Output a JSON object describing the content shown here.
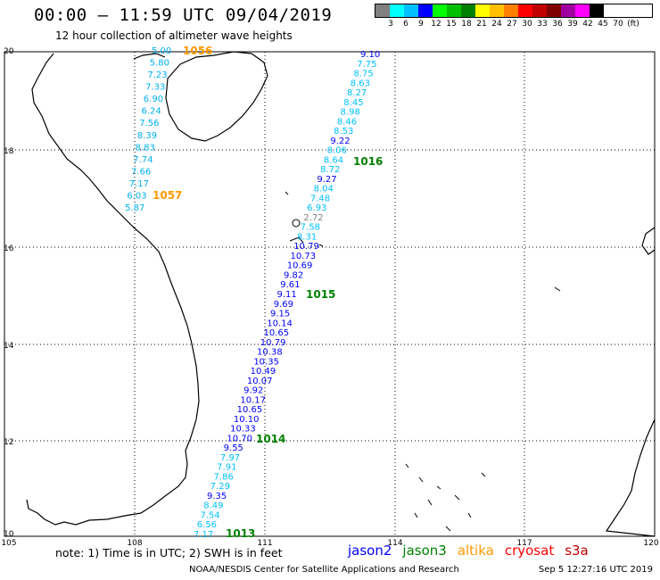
{
  "header": {
    "title": "00:00 – 11:59 UTC 09/04/2019",
    "subtitle": "12 hour collection of altimeter wave heights"
  },
  "colorbar": {
    "colors": [
      "#808080",
      "#00ffff",
      "#00c0ff",
      "#0000ff",
      "#00ff00",
      "#00c000",
      "#008000",
      "#ffff00",
      "#ffc000",
      "#ff8000",
      "#ff0000",
      "#c00000",
      "#800000",
      "#a000a0",
      "#ff00ff",
      "#000000"
    ],
    "labels": [
      "3",
      "6",
      "9",
      "12",
      "15",
      "18",
      "21",
      "24",
      "27",
      "30",
      "33",
      "36",
      "39",
      "42",
      "45",
      "70",
      "(ft)"
    ]
  },
  "map": {
    "lat_labels": [
      "20",
      "18",
      "16",
      "14",
      "12",
      "10"
    ],
    "lon_labels": [
      "105",
      "108",
      "111",
      "114",
      "117",
      "120"
    ]
  },
  "tracks": {
    "west": {
      "values": [
        "5.00",
        "5.80",
        "7.23",
        "7.33",
        "6.90",
        "6.24",
        "7.56",
        "8.39",
        "8.83",
        "7.74",
        "7.66",
        "7.17",
        "6.03",
        "5.87"
      ],
      "pass_labels": [
        {
          "text": "1056",
          "color": "#ff9900"
        },
        {
          "text": "1057",
          "color": "#ff9900"
        }
      ]
    },
    "east": {
      "values": [
        "9.10",
        "7.75",
        "8.75",
        "8.63",
        "8.27",
        "8.45",
        "8.98",
        "8.46",
        "8.53",
        "9.22",
        "8.06",
        "8.64",
        "8.72",
        "9.27",
        "8.04",
        "7.48",
        "6.93",
        "2.72",
        "7.58",
        "8.31",
        "10.79",
        "10.73",
        "10.69",
        "9.82",
        "9.61",
        "9.11",
        "9.69",
        "9.15",
        "10.14",
        "10.65",
        "10.79",
        "10.38",
        "10.35",
        "10.49",
        "10.07",
        "9.92",
        "10.17",
        "10.65",
        "10.10",
        "10.33",
        "10.70",
        "9.55",
        "7.97",
        "7.91",
        "7.86",
        "7.29",
        "9.35",
        "8.49",
        "7.54",
        "6.56",
        "7.17"
      ],
      "colors": [
        "#0000ff",
        "#00c0ff",
        "#00c0ff",
        "#00c0ff",
        "#00c0ff",
        "#00c0ff",
        "#00c0ff",
        "#00c0ff",
        "#00c0ff",
        "#0000ff",
        "#00c0ff",
        "#00c0ff",
        "#00c0ff",
        "#0000ff",
        "#00c0ff",
        "#00c0ff",
        "#00c0ff",
        "#808080",
        "#00c0ff",
        "#00c0ff",
        "#0000ff",
        "#0000ff",
        "#0000ff",
        "#0000ff",
        "#0000ff",
        "#0000ff",
        "#0000ff",
        "#0000ff",
        "#0000ff",
        "#0000ff",
        "#0000ff",
        "#0000ff",
        "#0000ff",
        "#0000ff",
        "#0000ff",
        "#0000ff",
        "#0000ff",
        "#0000ff",
        "#0000ff",
        "#0000ff",
        "#0000ff",
        "#0000ff",
        "#00c0ff",
        "#00c0ff",
        "#00c0ff",
        "#00c0ff",
        "#0000ff",
        "#00c0ff",
        "#00c0ff",
        "#00c0ff",
        "#00c0ff"
      ],
      "pass_labels": [
        {
          "text": "1016",
          "color": "#008000"
        },
        {
          "text": "1015",
          "color": "#008000"
        },
        {
          "text": "1014",
          "color": "#008000"
        },
        {
          "text": "1013",
          "color": "#008000"
        }
      ]
    }
  },
  "footer": {
    "note": "note:  1) Time is in UTC;  2) SWH is in feet",
    "satellites": [
      {
        "name": "jason2",
        "color": "#0000ff"
      },
      {
        "name": "jason3",
        "color": "#008000"
      },
      {
        "name": "altika",
        "color": "#ff9900"
      },
      {
        "name": "cryosat",
        "color": "#ff0000"
      },
      {
        "name": "s3a",
        "color": "#c00000"
      }
    ],
    "credit": "NOAA/NESDIS Center for Satellite Applications and Research",
    "timestamp": "Sep  5 12:27:16 UTC 2019"
  }
}
